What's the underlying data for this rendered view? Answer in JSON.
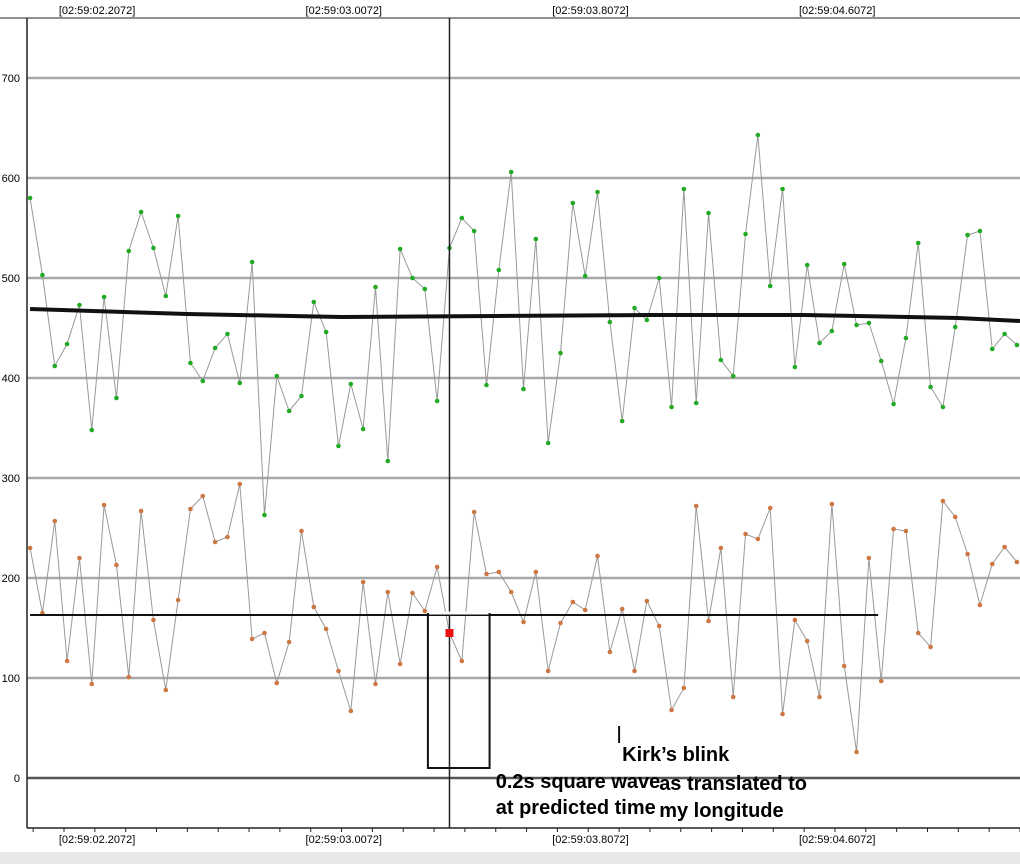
{
  "chart_data": {
    "type": "line",
    "title": "",
    "xlabel": "",
    "ylabel": "",
    "ylim": [
      -50,
      760
    ],
    "y_ticks": [
      0,
      100,
      200,
      300,
      400,
      500,
      600,
      700
    ],
    "y_tick_labels": [
      "0",
      "100",
      "200",
      "300",
      "400",
      "500",
      "600",
      "700"
    ],
    "x_tick_labels_top": [
      "[02:59:02.2072]",
      "[02:59:03.0072]",
      "[02:59:03.8072]",
      "[02:59:04.6072]"
    ],
    "x_tick_labels_bottom": [
      "[02:59:02.2072]",
      "[02:59:03.0072]",
      "[02:59:03.8072]",
      "[02:59:04.6072]"
    ],
    "x_tick_positions": [
      2.2072,
      3.0072,
      3.8072,
      4.6072
    ],
    "xlim": [
      1.98,
      5.2
    ],
    "grid": true,
    "x_unit": "seconds after 02:59",
    "series": [
      {
        "color": "#22aa22",
        "values_x": [
          1.99,
          2.03,
          2.07,
          2.11,
          2.15,
          2.19,
          2.23,
          2.27,
          2.31,
          2.35,
          2.39,
          2.43,
          2.47,
          2.51,
          2.55,
          2.59,
          2.63,
          2.67,
          2.71,
          2.75,
          2.79,
          2.83,
          2.87,
          2.91,
          2.95,
          2.99,
          3.03,
          3.07,
          3.11,
          3.15,
          3.19,
          3.23,
          3.27,
          3.31,
          3.35,
          3.39,
          3.43,
          3.47,
          3.51,
          3.55,
          3.59,
          3.63,
          3.67,
          3.71,
          3.75,
          3.79,
          3.83,
          3.87,
          3.91,
          3.95,
          3.99,
          4.03,
          4.07,
          4.11,
          4.15,
          4.19,
          4.23,
          4.27,
          4.31,
          4.35,
          4.39,
          4.43,
          4.47,
          4.51,
          4.55,
          4.59,
          4.63,
          4.67,
          4.71,
          4.75,
          4.79,
          4.83,
          4.87,
          4.91,
          4.95,
          4.99,
          5.03,
          5.07,
          5.11,
          5.15,
          5.19
        ],
        "values": [
          580,
          503,
          412,
          434,
          473,
          348,
          481,
          380,
          527,
          566,
          530,
          482,
          562,
          415,
          397,
          430,
          444,
          395,
          516,
          263,
          402,
          367,
          382,
          476,
          446,
          332,
          394,
          349,
          491,
          317,
          529,
          500,
          489,
          377,
          530,
          560,
          547,
          393,
          508,
          606,
          389,
          539,
          335,
          425,
          575,
          502,
          586,
          456,
          357,
          470,
          458,
          500,
          371,
          589,
          375,
          565,
          418,
          402,
          544,
          643,
          492,
          589,
          411,
          513,
          435,
          447,
          514,
          453,
          455,
          417,
          374,
          440,
          535,
          391,
          371,
          451,
          543,
          547,
          429,
          444,
          433
        ],
        "trend_x": [
          1.99,
          2.5,
          3.0,
          3.5,
          4.0,
          4.5,
          5.0,
          5.2
        ],
        "trend": [
          469,
          464,
          461,
          462,
          463,
          463,
          460,
          457
        ]
      },
      {
        "color": "#cc7744",
        "values_x": [
          1.99,
          2.03,
          2.07,
          2.11,
          2.15,
          2.19,
          2.23,
          2.27,
          2.31,
          2.35,
          2.39,
          2.43,
          2.47,
          2.51,
          2.55,
          2.59,
          2.63,
          2.67,
          2.71,
          2.75,
          2.79,
          2.83,
          2.87,
          2.91,
          2.95,
          2.99,
          3.03,
          3.07,
          3.11,
          3.15,
          3.19,
          3.23,
          3.27,
          3.31,
          3.35,
          3.39,
          3.43,
          3.47,
          3.51,
          3.55,
          3.59,
          3.63,
          3.67,
          3.71,
          3.75,
          3.79,
          3.83,
          3.87,
          3.91,
          3.95,
          3.99,
          4.03,
          4.07,
          4.11,
          4.15,
          4.19,
          4.23,
          4.27,
          4.31,
          4.35,
          4.39,
          4.43,
          4.47,
          4.51,
          4.55,
          4.59,
          4.63,
          4.67,
          4.71,
          4.75,
          4.79,
          4.83,
          4.87,
          4.91,
          4.95,
          4.99,
          5.03,
          5.07,
          5.11,
          5.15,
          5.19
        ],
        "values": [
          230,
          165,
          257,
          117,
          220,
          94,
          273,
          213,
          101,
          267,
          158,
          88,
          178,
          269,
          282,
          236,
          241,
          294,
          139,
          145,
          95,
          136,
          247,
          171,
          149,
          107,
          67,
          196,
          94,
          186,
          114,
          185,
          167,
          211,
          145,
          117,
          266,
          204,
          206,
          186,
          156,
          206,
          107,
          155,
          176,
          168,
          222,
          126,
          169,
          107,
          177,
          152,
          68,
          90,
          272,
          157,
          230,
          81,
          244,
          239,
          270,
          64,
          158,
          137,
          81,
          274,
          112,
          26,
          220,
          97,
          249,
          247,
          145,
          131,
          277,
          261,
          224,
          173,
          214,
          231,
          216
        ],
        "trend_x": [
          1.99,
          4.74
        ],
        "trend": [
          163,
          163
        ]
      }
    ],
    "highlight_point": {
      "x": 3.35,
      "y": 145,
      "color": "#ee1111"
    },
    "cursor_x": 3.35,
    "square_wave": {
      "start": 3.28,
      "end": 3.48,
      "high": 165,
      "low": 10
    },
    "blink_marker": {
      "x": 3.9,
      "y_top": 52,
      "y_bottom": 35
    },
    "annotations": [
      {
        "text": "0.2s square wave",
        "x": 3.5,
        "y": -3
      },
      {
        "text": "at predicted time",
        "x": 3.5,
        "y": -29
      },
      {
        "text": "Kirk’s blink",
        "x": 3.91,
        "y": 24
      },
      {
        "text": "as translated to",
        "x": 4.03,
        "y": -5
      },
      {
        "text": "my longitude",
        "x": 4.03,
        "y": -32
      }
    ]
  }
}
